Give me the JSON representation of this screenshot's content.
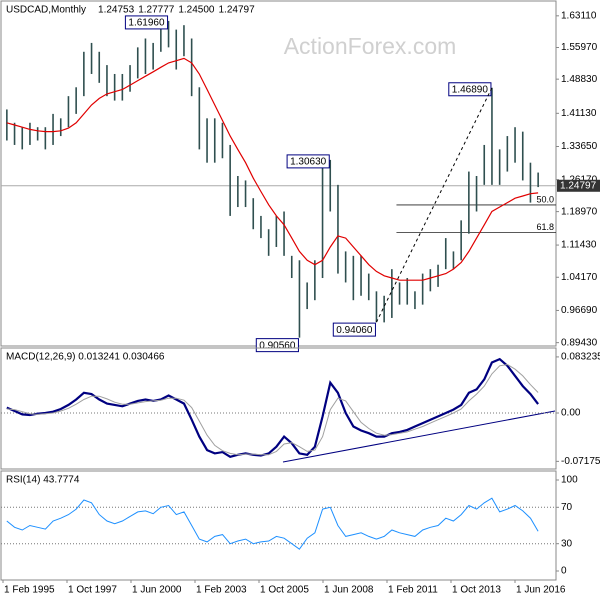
{
  "watermark": "ActionForex.com",
  "x_labels": [
    "1 Feb 1995",
    "1 Oct 1997",
    "1 Jun 2000",
    "1 Feb 2003",
    "1 Oct 2005",
    "1 Jun 2008",
    "1 Feb 2011",
    "1 Oct 2013",
    "1 Jun 2016"
  ],
  "chart_data": [
    {
      "type": "ohlc",
      "title": "USDCAD,Monthly",
      "header_values": [
        "1.24753",
        "1.27777",
        "1.24500",
        "1.24797"
      ],
      "color": "#2f4f4f",
      "ylim": [
        0.889,
        1.66
      ],
      "yticks": [
        {
          "value": 1.6311,
          "label": "1.63110"
        },
        {
          "value": 1.5597,
          "label": "1.55970"
        },
        {
          "value": 1.4883,
          "label": "1.48830"
        },
        {
          "value": 1.4113,
          "label": "1.41130"
        },
        {
          "value": 1.3365,
          "label": "1.33650"
        },
        {
          "value": 1.2617,
          "label": "1.26170"
        },
        {
          "value": 1.1897,
          "label": "1.18970"
        },
        {
          "value": 1.1143,
          "label": "1.11430"
        },
        {
          "value": 1.0417,
          "label": "1.04170"
        },
        {
          "value": 0.9669,
          "label": "0.96690"
        },
        {
          "value": 0.8943,
          "label": "0.89430"
        }
      ],
      "high": [
        1.42,
        1.39,
        1.38,
        1.39,
        1.38,
        1.38,
        1.41,
        1.4,
        1.45,
        1.47,
        1.55,
        1.57,
        1.55,
        1.52,
        1.5,
        1.5,
        1.52,
        1.56,
        1.58,
        1.57,
        1.61,
        1.6196,
        1.6,
        1.61,
        1.58,
        1.47,
        1.4,
        1.4,
        1.39,
        1.34,
        1.27,
        1.26,
        1.22,
        1.18,
        1.15,
        1.18,
        1.19,
        1.09,
        1.08,
        1.03,
        1.08,
        1.29,
        1.3063,
        1.25,
        1.1,
        1.09,
        1.09,
        1.05,
        1.01,
        1.0,
        1.06,
        1.03,
        1.04,
        1.01,
        1.05,
        1.06,
        1.07,
        1.13,
        1.1,
        1.17,
        1.28,
        1.27,
        1.34,
        1.4689,
        1.33,
        1.36,
        1.38,
        1.37,
        1.3,
        1.27777
      ],
      "low": [
        1.35,
        1.34,
        1.33,
        1.34,
        1.35,
        1.33,
        1.34,
        1.36,
        1.38,
        1.41,
        1.45,
        1.5,
        1.48,
        1.45,
        1.44,
        1.44,
        1.46,
        1.49,
        1.5,
        1.51,
        1.55,
        1.56,
        1.51,
        1.54,
        1.45,
        1.33,
        1.3,
        1.3,
        1.31,
        1.18,
        1.2,
        1.2,
        1.15,
        1.13,
        1.09,
        1.11,
        1.09,
        1.04,
        0.9056,
        0.97,
        0.99,
        1.04,
        1.19,
        1.05,
        1.03,
        0.99,
        1.0,
        0.99,
        0.9406,
        0.94,
        0.95,
        0.98,
        0.98,
        0.97,
        0.98,
        1.01,
        1.02,
        1.06,
        1.06,
        1.08,
        1.14,
        1.19,
        1.25,
        1.25,
        1.25,
        1.28,
        1.3,
        1.26,
        1.21,
        1.245
      ],
      "ma": {
        "color": "#e00000",
        "values": [
          1.39,
          1.385,
          1.38,
          1.375,
          1.372,
          1.37,
          1.37,
          1.372,
          1.378,
          1.39,
          1.41,
          1.43,
          1.445,
          1.455,
          1.46,
          1.465,
          1.475,
          1.485,
          1.495,
          1.505,
          1.515,
          1.525,
          1.53,
          1.535,
          1.525,
          1.5,
          1.465,
          1.43,
          1.395,
          1.36,
          1.33,
          1.3,
          1.265,
          1.235,
          1.205,
          1.18,
          1.16,
          1.13,
          1.1,
          1.08,
          1.07,
          1.08,
          1.11,
          1.135,
          1.13,
          1.11,
          1.09,
          1.07,
          1.055,
          1.045,
          1.04,
          1.035,
          1.035,
          1.035,
          1.035,
          1.04,
          1.045,
          1.05,
          1.06,
          1.075,
          1.1,
          1.13,
          1.16,
          1.19,
          1.2,
          1.21,
          1.22,
          1.225,
          1.23,
          1.232
        ]
      },
      "annotations": [
        {
          "label": "1.61960",
          "value": 1.6196,
          "at": "high"
        },
        {
          "label": "1.30630",
          "value": 1.3063,
          "at": "high"
        },
        {
          "label": "0.90560",
          "value": 0.9056,
          "at": "low"
        },
        {
          "label": "0.94060",
          "value": 0.9406,
          "at": "low"
        },
        {
          "label": "1.46890",
          "value": 1.4689,
          "at": "high"
        }
      ],
      "fib": [
        {
          "label": "50.0",
          "value": 1.20475
        },
        {
          "label": "61.8",
          "value": 1.1424
        }
      ],
      "last_price": {
        "value": 1.24797,
        "label": "1.24797"
      }
    },
    {
      "type": "line",
      "title": "MACD(12,26,9) 0.013241 0.030466",
      "ylim": [
        -0.0816,
        0.0935
      ],
      "yticks": [
        0.083235,
        {
          "value": 0,
          "label": "0.00"
        },
        -0.071752
      ],
      "dotted_levels": [
        0
      ],
      "series": [
        {
          "color": "#000080",
          "width": 2.2,
          "values": [
            0.008,
            0.003,
            -0.002,
            -0.003,
            -0.001,
            0.0,
            0.002,
            0.006,
            0.012,
            0.02,
            0.03,
            0.028,
            0.02,
            0.014,
            0.012,
            0.01,
            0.014,
            0.018,
            0.02,
            0.018,
            0.02,
            0.026,
            0.02,
            0.014,
            -0.01,
            -0.035,
            -0.055,
            -0.06,
            -0.058,
            -0.065,
            -0.062,
            -0.06,
            -0.062,
            -0.063,
            -0.06,
            -0.05,
            -0.035,
            -0.045,
            -0.06,
            -0.062,
            -0.05,
            -0.005,
            0.045,
            0.03,
            0.0,
            -0.02,
            -0.026,
            -0.03,
            -0.035,
            -0.035,
            -0.03,
            -0.028,
            -0.025,
            -0.02,
            -0.015,
            -0.01,
            -0.005,
            0.0,
            0.005,
            0.012,
            0.03,
            0.035,
            0.05,
            0.075,
            0.08,
            0.07,
            0.055,
            0.04,
            0.028,
            0.013241
          ]
        },
        {
          "color": "#a0a0a0",
          "width": 1,
          "values": [
            0.006,
            0.005,
            0.002,
            -0.001,
            -0.002,
            -0.001,
            0.0,
            0.003,
            0.007,
            0.013,
            0.02,
            0.025,
            0.025,
            0.021,
            0.016,
            0.013,
            0.013,
            0.015,
            0.017,
            0.018,
            0.019,
            0.022,
            0.022,
            0.019,
            0.008,
            -0.012,
            -0.033,
            -0.048,
            -0.056,
            -0.06,
            -0.062,
            -0.061,
            -0.061,
            -0.062,
            -0.062,
            -0.057,
            -0.046,
            -0.044,
            -0.05,
            -0.057,
            -0.055,
            -0.035,
            0.005,
            0.022,
            0.018,
            0.002,
            -0.014,
            -0.023,
            -0.03,
            -0.033,
            -0.032,
            -0.03,
            -0.028,
            -0.024,
            -0.02,
            -0.015,
            -0.01,
            -0.005,
            0.0,
            0.006,
            0.018,
            0.028,
            0.04,
            0.058,
            0.07,
            0.072,
            0.065,
            0.055,
            0.042,
            0.030466
          ]
        }
      ]
    },
    {
      "type": "line",
      "title": "RSI(14) 43.7774",
      "ylim": [
        -7.7,
        107.7
      ],
      "yticks": [
        100,
        70,
        30,
        0
      ],
      "dotted_levels": [
        70,
        30
      ],
      "series": [
        {
          "color": "#1e90ff",
          "width": 1,
          "values": [
            55,
            48,
            45,
            50,
            48,
            46,
            55,
            58,
            62,
            68,
            78,
            75,
            62,
            55,
            52,
            55,
            60,
            65,
            66,
            63,
            70,
            72,
            62,
            65,
            50,
            35,
            32,
            38,
            40,
            30,
            33,
            35,
            30,
            32,
            33,
            38,
            36,
            30,
            24,
            36,
            42,
            68,
            70,
            50,
            38,
            40,
            42,
            38,
            35,
            38,
            45,
            42,
            40,
            38,
            45,
            48,
            50,
            58,
            55,
            62,
            72,
            68,
            75,
            80,
            65,
            68,
            72,
            66,
            58,
            43.7774
          ]
        }
      ]
    }
  ]
}
